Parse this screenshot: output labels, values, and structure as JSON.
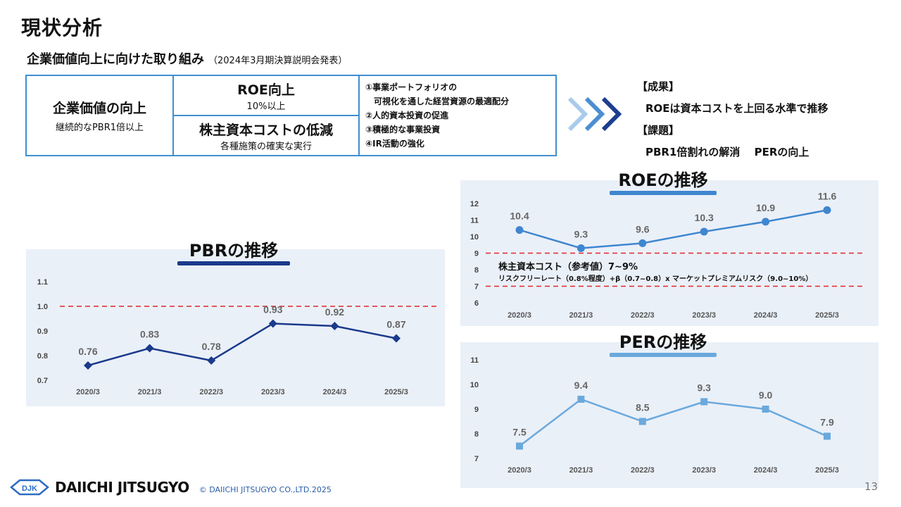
{
  "header": {
    "title": "現状分析",
    "subtitle": "企業価値向上に向けた取り組み",
    "subtitle_note": "（2024年3月期決算説明会発表）"
  },
  "framework": {
    "goal_title": "企業価値の向上",
    "goal_sub": "継続的なPBR1倍以上",
    "roe_title": "ROE向上",
    "roe_sub": "10%以上",
    "cost_title": "株主資本コストの低減",
    "cost_sub": "各種施策の確実な実行",
    "actions": [
      "①事業ポートフォリオの",
      "　可視化を通した経営資源の最適配分",
      "②人的資本投資の促進",
      "③積極的な事業投資",
      "④IR活動の強化"
    ]
  },
  "results": {
    "result_heading": "【成果】",
    "result_text": "ROEは資本コストを上回る水準で推移",
    "issue_heading": "【課題】",
    "issue_text": "PBR1倍割れの解消　 PERの向上"
  },
  "colors": {
    "pbr": "#1a3a8c",
    "roe": "#3f86d0",
    "per": "#6aa9dd",
    "ref": "#e0262b",
    "bg": "#eaf0f8"
  },
  "chart_data": [
    {
      "type": "line",
      "title": "PBRの推移",
      "categories": [
        "2020/3",
        "2021/3",
        "2022/3",
        "2023/3",
        "2024/3",
        "2025/3"
      ],
      "values": [
        0.76,
        0.83,
        0.78,
        0.93,
        0.92,
        0.87
      ],
      "data_labels": [
        "0.76",
        "0.83",
        "0.78",
        "0.93",
        "0.92",
        "0.87"
      ],
      "yticks": [
        "0.7",
        "0.8",
        "0.9",
        "1.0",
        "1.1"
      ],
      "ylim": [
        0.7,
        1.1
      ],
      "reference_line": 1.0,
      "marker": "diamond"
    },
    {
      "type": "line",
      "title": "ROEの推移",
      "categories": [
        "2020/3",
        "2021/3",
        "2022/3",
        "2023/3",
        "2024/3",
        "2025/3"
      ],
      "values": [
        10.4,
        9.3,
        9.6,
        10.3,
        10.9,
        11.6
      ],
      "data_labels": [
        "10.4",
        "9.3",
        "9.6",
        "10.3",
        "10.9",
        "11.6"
      ],
      "yticks": [
        "6",
        "7",
        "8",
        "9",
        "10",
        "11",
        "12"
      ],
      "ylim": [
        6,
        12
      ],
      "reference_band": [
        7,
        9
      ],
      "annotation_title": "株主資本コスト（参考値）7~9%",
      "annotation_detail": "リスクフリーレート（0.8%程度）+β（0.7~0.8）x マーケットプレミアムリスク（9.0~10%）",
      "marker": "circle"
    },
    {
      "type": "line",
      "title": "PERの推移",
      "categories": [
        "2020/3",
        "2021/3",
        "2022/3",
        "2023/3",
        "2024/3",
        "2025/3"
      ],
      "values": [
        7.5,
        9.4,
        8.5,
        9.3,
        9.0,
        7.9
      ],
      "data_labels": [
        "7.5",
        "9.4",
        "8.5",
        "9.3",
        "9.0",
        "7.9"
      ],
      "yticks": [
        "7",
        "8",
        "9",
        "10",
        "11"
      ],
      "ylim": [
        7,
        11
      ],
      "marker": "square"
    }
  ],
  "footer": {
    "logo_text": "DJK",
    "brand": "DAIICHI JITSUGYO",
    "copyright": "© DAIICHI JITSUGYO CO.,LTD.2025",
    "page": "13"
  }
}
